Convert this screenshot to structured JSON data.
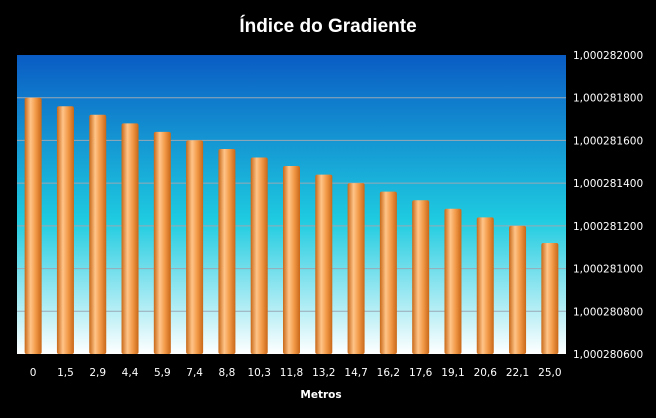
{
  "chart_data": {
    "type": "bar",
    "title": "Índice do Gradiente",
    "xlabel": "Metros",
    "ylabel": "",
    "categories": [
      "0",
      "1,5",
      "2,9",
      "4,4",
      "5,9",
      "7,4",
      "8,8",
      "10,3",
      "11,8",
      "13,2",
      "14,7",
      "16,2",
      "17,6",
      "19,1",
      "20,6",
      "22,1",
      "25,0"
    ],
    "values": [
      1.0002818,
      1.00028176,
      1.00028172,
      1.00028168,
      1.00028164,
      1.0002816,
      1.00028156,
      1.00028152,
      1.00028148,
      1.00028144,
      1.0002814,
      1.00028136,
      1.00028132,
      1.00028128,
      1.00028124,
      1.0002812,
      1.00028112
    ],
    "ylim": [
      1.0002806,
      1.000282
    ],
    "yticks": [
      1.0002806,
      1.0002808,
      1.000281,
      1.0002812,
      1.0002814,
      1.0002816,
      1.0002818,
      1.000282
    ],
    "ytick_labels": [
      "1,000280600",
      "1,000280800",
      "1,000281000",
      "1,000281200",
      "1,000281400",
      "1,000281600",
      "1,000281800",
      "1,000282000"
    ],
    "grid": true,
    "legend": "none",
    "colors": {
      "background": "#000000",
      "plot_top": "#0a5cc4",
      "plot_mid": "#1ecbe0",
      "plot_bottom": "#ffffff",
      "bar_light": "#ffc488",
      "bar_mid": "#f29a48",
      "bar_dark": "#c86818",
      "grid": "#9aa9b5",
      "text": "#ffffff"
    }
  }
}
